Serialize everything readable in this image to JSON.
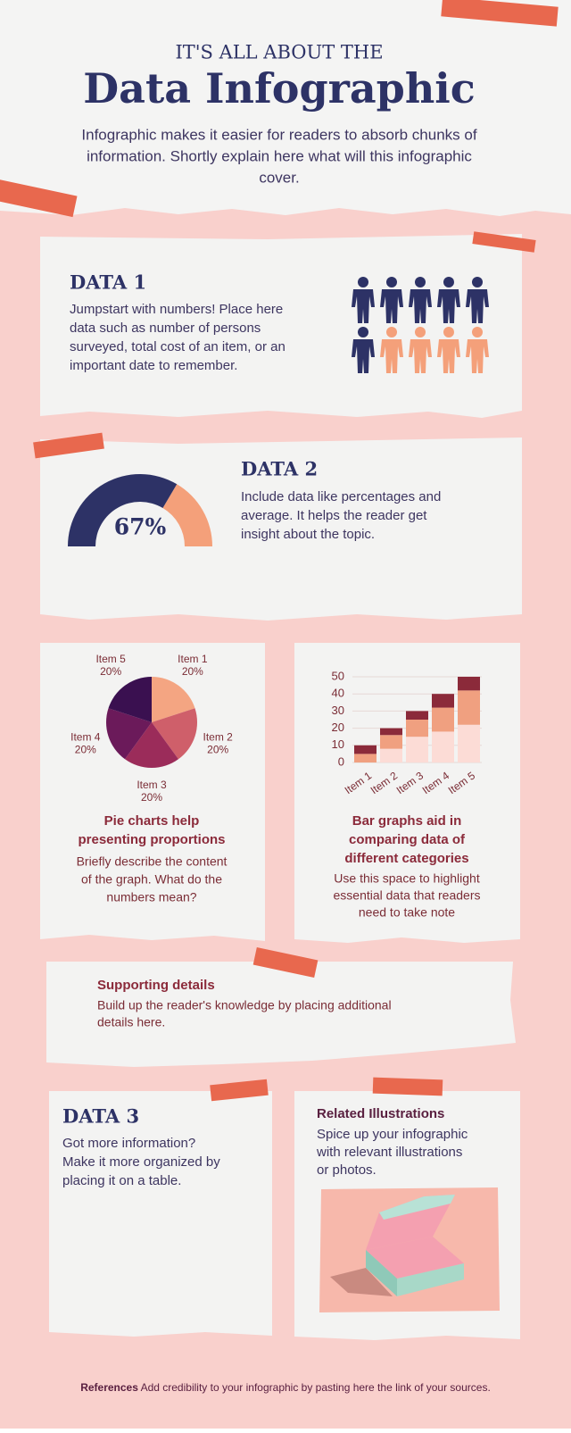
{
  "header": {
    "kicker": "IT'S ALL ABOUT THE",
    "title": "Data Infographic",
    "intro": [
      "Infographic makes it easier for readers to absorb chunks of",
      "information. Shortly explain here what will this infographic",
      "cover."
    ]
  },
  "data1": {
    "title": "DATA 1",
    "text": [
      "Jumpstart with numbers! Place here",
      "data such as number of persons",
      "surveyed, total cost of an item, or an",
      "important date to remember."
    ]
  },
  "data2": {
    "title": "DATA 2",
    "text": [
      "Include data like percentages and",
      "average. It helps the reader get",
      "insight about the topic."
    ]
  },
  "chart_data": [
    {
      "type": "gauge",
      "values": [
        67
      ],
      "value_labels": [
        "67%"
      ],
      "ylim": [
        0,
        100
      ],
      "colors": [
        "#2d3266",
        "#f4a07a"
      ]
    },
    {
      "type": "pie",
      "categories": [
        "Item 1",
        "Item 2",
        "Item 3",
        "Item 4",
        "Item 5"
      ],
      "values": [
        20,
        20,
        20,
        20,
        20
      ],
      "value_labels": [
        "20%",
        "20%",
        "20%",
        "20%",
        "20%"
      ],
      "colors": [
        "#f4a582",
        "#cf5f6a",
        "#9b2c5a",
        "#6b1a5a",
        "#3a1050"
      ]
    },
    {
      "type": "bar",
      "stacked": true,
      "categories": [
        "Item 1",
        "Item 2",
        "Item 3",
        "Item 4",
        "Item 5"
      ],
      "series": [
        {
          "color": "#fcdcd6",
          "values": [
            0,
            8,
            15,
            18,
            22
          ]
        },
        {
          "color": "#f0a080",
          "values": [
            5,
            8,
            10,
            14,
            20
          ]
        },
        {
          "color": "#8b2a3a",
          "values": [
            5,
            4,
            5,
            8,
            8
          ]
        }
      ],
      "ylim": [
        0,
        50
      ],
      "yticks": [
        0,
        10,
        20,
        30,
        40,
        50
      ],
      "grid": true
    }
  ],
  "pie_card": {
    "title": [
      "Pie charts help",
      "presenting proportions"
    ],
    "text": [
      "Briefly describe the  content",
      "of the graph. What do the",
      "numbers mean?"
    ]
  },
  "bar_card": {
    "title": [
      "Bar graphs aid in",
      "comparing data of",
      "different categories"
    ],
    "text": [
      "Use this space to highlight",
      "essential data that readers",
      "need to take note"
    ]
  },
  "supporting": {
    "title": "Supporting details",
    "text": [
      "Build up the reader's knowledge by placing additional",
      "details here."
    ]
  },
  "data3": {
    "title": "DATA 3",
    "text": [
      "Got more information?",
      "Make it more organized by",
      "placing it on a table."
    ]
  },
  "related": {
    "title": "Related Illustrations",
    "text": [
      "Spice up your infographic",
      "with relevant illustrations",
      "or photos."
    ]
  },
  "references": {
    "label": "References",
    "text": "Add credibility to your infographic by pasting here the link of your sources."
  }
}
